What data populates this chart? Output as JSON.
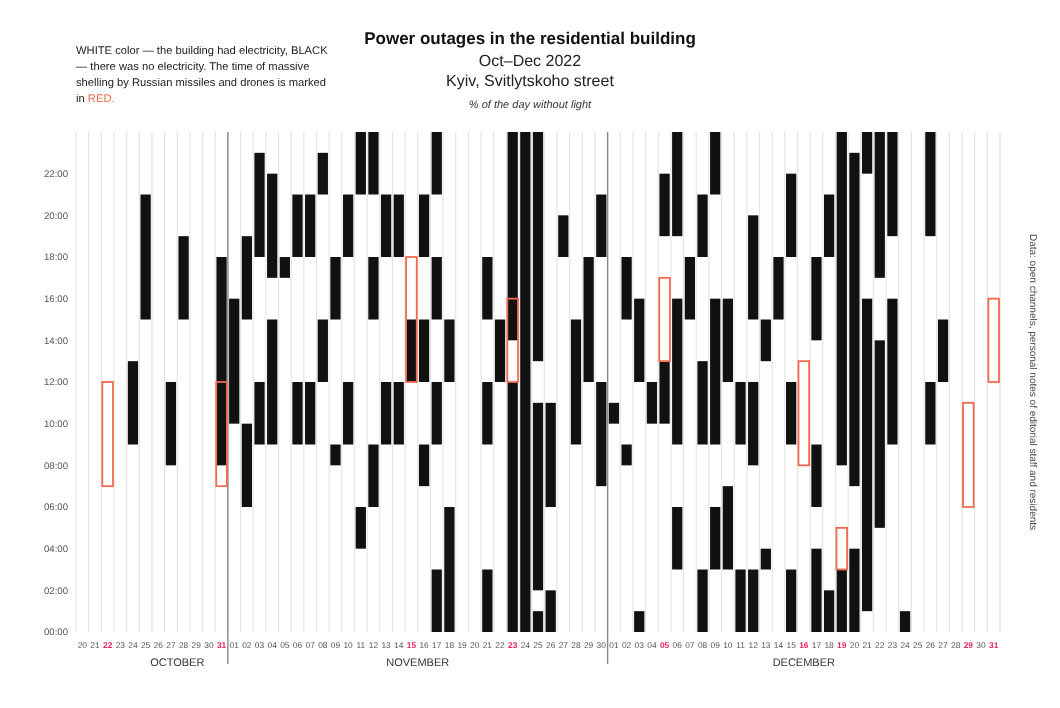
{
  "chart_data": {
    "type": "bar",
    "title": "Power outages in the residential building",
    "subtitle": "Oct–Dec 2022\nKyiv, Svitlytskoho street",
    "annotations": [
      "OCTOBER",
      "NOVEMBER",
      "DECEMBER",
      "% of the day without light",
      "WHITE color — the building had electricity, BLACK — there was no electricity. The time of massive shelling by Russian missiles and drones is marked in RED.",
      "Data: open channels, personal notes of editorial staff and residents"
    ],
    "categories": [
      "20",
      "21",
      "22",
      "23",
      "24",
      "25",
      "26",
      "27",
      "28",
      "29",
      "30",
      "31",
      "01",
      "02",
      "03",
      "04",
      "05",
      "06",
      "07",
      "08",
      "09",
      "10",
      "11",
      "12",
      "13",
      "14",
      "15",
      "16",
      "17",
      "18",
      "19",
      "20",
      "21",
      "22",
      "23",
      "24",
      "25",
      "26",
      "27",
      "28",
      "29",
      "30",
      "01",
      "02",
      "03",
      "04",
      "05",
      "06",
      "07",
      "08",
      "09",
      "10",
      "11",
      "12",
      "13",
      "14",
      "15",
      "16",
      "17",
      "18",
      "19",
      "20",
      "21",
      "22",
      "23",
      "24",
      "25",
      "26",
      "27",
      "28",
      "29",
      "30",
      "31"
    ],
    "ylim": [
      0,
      24
    ],
    "yticks": [
      {
        "value": 0,
        "label": "00:00"
      },
      {
        "value": 2,
        "label": "02:00"
      },
      {
        "value": 4,
        "label": "04:00"
      },
      {
        "value": 6,
        "label": "06:00"
      },
      {
        "value": 8,
        "label": "08:00"
      },
      {
        "value": 10,
        "label": "10:00"
      },
      {
        "value": 12,
        "label": "12:00"
      },
      {
        "value": 14,
        "label": "14:00"
      },
      {
        "value": 16,
        "label": "16:00"
      },
      {
        "value": 18,
        "label": "18:00"
      },
      {
        "value": 20,
        "label": "20:00"
      },
      {
        "value": 22,
        "label": "22:00"
      }
    ],
    "grid": "x",
    "series": [
      {
        "color": "#111111",
        "base": [
          null,
          null,
          null,
          null,
          9,
          15,
          null,
          8,
          15,
          null,
          null,
          8,
          10,
          15,
          18,
          17,
          17,
          18,
          18,
          21,
          15,
          18,
          21,
          21,
          18,
          18,
          12,
          18,
          21,
          12,
          null,
          null,
          15,
          12,
          14,
          0,
          13,
          6,
          18,
          9,
          12,
          18,
          10,
          15,
          12,
          10,
          19,
          19,
          15,
          18,
          21,
          12,
          9,
          15,
          13,
          15,
          18,
          null,
          14,
          18,
          8,
          7,
          22,
          17,
          19,
          0,
          null,
          19,
          12,
          null,
          null,
          null,
          null
        ],
        "values": [
          null,
          null,
          null,
          null,
          4,
          6,
          null,
          4,
          4,
          null,
          null,
          10,
          6,
          4,
          5,
          5,
          1,
          3,
          3,
          2,
          3,
          3,
          3,
          3,
          3,
          3,
          3,
          3,
          3,
          3,
          null,
          null,
          3,
          3,
          10,
          24,
          11,
          5,
          2,
          6,
          6,
          3,
          1,
          3,
          4,
          2,
          3,
          5,
          3,
          3,
          3,
          4,
          3,
          5,
          2,
          3,
          4,
          null,
          4,
          3,
          16,
          16,
          2,
          7,
          5,
          1,
          null,
          5,
          3,
          null,
          null,
          null,
          null
        ]
      },
      {
        "color": "#111111",
        "base": [
          null,
          null,
          null,
          null,
          null,
          null,
          null,
          null,
          null,
          null,
          null,
          null,
          null,
          6,
          9,
          9,
          null,
          9,
          9,
          12,
          8,
          9,
          4,
          15,
          9,
          9,
          null,
          12,
          15,
          0,
          null,
          null,
          9,
          null,
          0,
          null,
          2,
          0,
          null,
          null,
          null,
          7,
          null,
          8,
          0,
          null,
          10,
          9,
          null,
          9,
          9,
          3,
          0,
          8,
          3,
          null,
          9,
          null,
          6,
          0,
          0,
          0,
          1,
          5,
          9,
          null,
          null,
          9,
          null,
          null,
          null,
          null,
          null
        ],
        "values": [
          null,
          null,
          null,
          null,
          null,
          null,
          null,
          null,
          null,
          null,
          null,
          null,
          null,
          4,
          3,
          6,
          null,
          3,
          3,
          3,
          1,
          3,
          2,
          3,
          3,
          3,
          null,
          3,
          3,
          6,
          null,
          null,
          3,
          null,
          12,
          null,
          9,
          2,
          null,
          null,
          null,
          5,
          null,
          1,
          1,
          null,
          3,
          7,
          null,
          4,
          7,
          4,
          3,
          4,
          1,
          null,
          3,
          null,
          3,
          2,
          3,
          4,
          15,
          9,
          7,
          null,
          null,
          3,
          null,
          null,
          null,
          null,
          null
        ]
      },
      {
        "color": "#111111",
        "base": [
          null,
          null,
          null,
          null,
          null,
          null,
          null,
          null,
          null,
          null,
          null,
          null,
          null,
          null,
          null,
          null,
          null,
          null,
          null,
          null,
          null,
          null,
          null,
          6,
          null,
          null,
          null,
          7,
          9,
          null,
          null,
          null,
          0,
          null,
          null,
          null,
          0,
          null,
          null,
          null,
          null,
          null,
          null,
          null,
          null,
          null,
          null,
          3,
          null,
          0,
          3,
          null,
          null,
          0,
          null,
          null,
          0,
          null,
          0,
          null,
          null,
          null,
          null,
          null,
          null,
          null,
          null,
          null,
          null,
          null,
          null,
          null,
          null
        ],
        "values": [
          null,
          null,
          null,
          null,
          null,
          null,
          null,
          null,
          null,
          null,
          null,
          null,
          null,
          null,
          null,
          null,
          null,
          null,
          null,
          null,
          null,
          null,
          null,
          3,
          null,
          null,
          null,
          2,
          3,
          null,
          null,
          null,
          3,
          null,
          null,
          null,
          1,
          null,
          null,
          null,
          null,
          null,
          null,
          null,
          null,
          null,
          null,
          3,
          null,
          3,
          3,
          null,
          null,
          3,
          null,
          null,
          3,
          null,
          4,
          null,
          null,
          null,
          null,
          null,
          null,
          null,
          null,
          null,
          null,
          null,
          null,
          null,
          null
        ]
      },
      {
        "color": "#111111",
        "base": [
          null,
          null,
          null,
          null,
          null,
          null,
          null,
          null,
          null,
          null,
          null,
          null,
          null,
          null,
          null,
          null,
          null,
          null,
          null,
          null,
          null,
          null,
          null,
          null,
          null,
          null,
          null,
          null,
          0,
          null,
          null,
          null,
          null,
          null,
          null,
          null,
          null,
          null,
          null,
          null,
          null,
          null,
          null,
          null,
          null,
          null,
          null,
          null,
          null,
          null,
          null,
          null,
          null,
          null,
          null,
          null,
          null,
          null,
          null,
          null,
          null,
          null,
          null,
          null,
          null,
          null,
          null,
          null,
          null,
          null,
          null,
          null,
          null
        ],
        "values": [
          null,
          null,
          null,
          null,
          null,
          null,
          null,
          null,
          null,
          null,
          null,
          null,
          null,
          null,
          null,
          null,
          null,
          null,
          null,
          null,
          null,
          null,
          null,
          null,
          null,
          null,
          null,
          null,
          3,
          null,
          null,
          null,
          null,
          null,
          null,
          null,
          null,
          null,
          null,
          null,
          null,
          null,
          null,
          null,
          null,
          null,
          null,
          null,
          null,
          null,
          null,
          null,
          null,
          null,
          null,
          null,
          null,
          null,
          null,
          null,
          null,
          null,
          null,
          null,
          null,
          null,
          null,
          null,
          null,
          null,
          null,
          null,
          null
        ]
      },
      {
        "color": "#f26b4f",
        "line_style": "solid",
        "base": [
          null,
          null,
          7,
          null,
          null,
          null,
          null,
          null,
          null,
          null,
          null,
          7,
          null,
          null,
          null,
          null,
          null,
          null,
          null,
          null,
          null,
          null,
          null,
          null,
          null,
          null,
          12,
          null,
          null,
          null,
          null,
          null,
          null,
          null,
          12,
          null,
          null,
          null,
          null,
          null,
          null,
          null,
          null,
          null,
          null,
          null,
          13,
          null,
          null,
          null,
          null,
          null,
          null,
          null,
          null,
          null,
          null,
          8,
          null,
          null,
          3,
          null,
          null,
          null,
          null,
          null,
          null,
          null,
          null,
          null,
          6,
          null,
          12
        ],
        "values": [
          null,
          null,
          5,
          null,
          null,
          null,
          null,
          null,
          null,
          null,
          null,
          5,
          null,
          null,
          null,
          null,
          null,
          null,
          null,
          null,
          null,
          null,
          null,
          null,
          null,
          null,
          6,
          null,
          null,
          null,
          null,
          null,
          null,
          null,
          4,
          null,
          null,
          null,
          null,
          null,
          null,
          null,
          null,
          null,
          null,
          null,
          4,
          null,
          null,
          null,
          null,
          null,
          null,
          null,
          null,
          null,
          null,
          5,
          null,
          null,
          2,
          null,
          null,
          null,
          null,
          null,
          null,
          null,
          null,
          null,
          5,
          null,
          4
        ]
      }
    ]
  }
}
